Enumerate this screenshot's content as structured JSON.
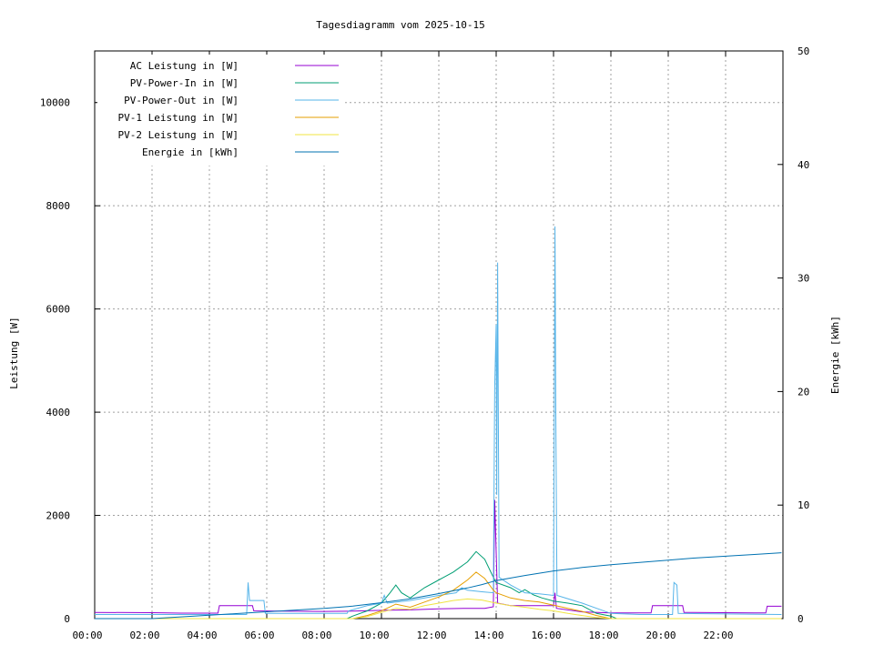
{
  "chart_data": {
    "type": "line",
    "title": "Tagesdiagramm vom 2025-10-15",
    "xlabel": "",
    "ylabel": "Leistung [W]",
    "y2label": "Energie [kWh]",
    "x_ticks": [
      "00:00",
      "02:00",
      "04:00",
      "06:00",
      "08:00",
      "10:00",
      "12:00",
      "14:00",
      "16:00",
      "18:00",
      "20:00",
      "22:00"
    ],
    "x_range_hours": [
      0,
      24
    ],
    "y_ticks": [
      "0",
      "2000",
      "4000",
      "6000",
      "8000",
      "10000"
    ],
    "ylim": [
      0,
      11000
    ],
    "y2_ticks": [
      "0",
      "10",
      "20",
      "30",
      "40",
      "50"
    ],
    "y2lim": [
      0,
      50
    ],
    "grid": true,
    "legend_position": "top-left",
    "series": [
      {
        "name": "AC Leistung in [W]",
        "color": "#9400d3",
        "axis": "left",
        "points": [
          [
            0,
            120
          ],
          [
            2,
            115
          ],
          [
            3,
            105
          ],
          [
            4.3,
            105
          ],
          [
            4.35,
            250
          ],
          [
            5.5,
            250
          ],
          [
            5.55,
            150
          ],
          [
            8,
            140
          ],
          [
            9,
            145
          ],
          [
            10,
            160
          ],
          [
            11,
            170
          ],
          [
            12,
            190
          ],
          [
            13,
            200
          ],
          [
            13.6,
            200
          ],
          [
            13.9,
            230
          ],
          [
            13.95,
            2300
          ],
          [
            14.05,
            300
          ],
          [
            14.5,
            250
          ],
          [
            15,
            250
          ],
          [
            16,
            250
          ],
          [
            16.05,
            500
          ],
          [
            16.1,
            200
          ],
          [
            17,
            130
          ],
          [
            18,
            110
          ],
          [
            19,
            110
          ],
          [
            19.4,
            110
          ],
          [
            19.45,
            250
          ],
          [
            20.5,
            250
          ],
          [
            20.55,
            120
          ],
          [
            23,
            110
          ],
          [
            23.4,
            110
          ],
          [
            23.45,
            240
          ],
          [
            23.95,
            240
          ]
        ]
      },
      {
        "name": "PV-Power-In in [W]",
        "color": "#009e73",
        "axis": "left",
        "points": [
          [
            0,
            0
          ],
          [
            8.8,
            0
          ],
          [
            9,
            50
          ],
          [
            9.5,
            150
          ],
          [
            10,
            300
          ],
          [
            10.3,
            500
          ],
          [
            10.5,
            650
          ],
          [
            10.7,
            500
          ],
          [
            11,
            400
          ],
          [
            11.5,
            600
          ],
          [
            12,
            750
          ],
          [
            12.5,
            900
          ],
          [
            13,
            1100
          ],
          [
            13.3,
            1300
          ],
          [
            13.6,
            1150
          ],
          [
            13.9,
            800
          ],
          [
            14,
            700
          ],
          [
            14.5,
            600
          ],
          [
            14.8,
            500
          ],
          [
            15,
            560
          ],
          [
            15.3,
            460
          ],
          [
            15.6,
            400
          ],
          [
            16,
            340
          ],
          [
            16.5,
            300
          ],
          [
            17,
            250
          ],
          [
            17.5,
            100
          ],
          [
            18,
            50
          ],
          [
            18.2,
            0
          ],
          [
            23.95,
            0
          ]
        ]
      },
      {
        "name": "PV-Power-Out in [W]",
        "color": "#56b4e9",
        "axis": "left",
        "points": [
          [
            0,
            80
          ],
          [
            4,
            80
          ],
          [
            5.3,
            80
          ],
          [
            5.35,
            700
          ],
          [
            5.4,
            350
          ],
          [
            5.9,
            350
          ],
          [
            5.95,
            100
          ],
          [
            8.8,
            100
          ],
          [
            8.85,
            150
          ],
          [
            9.5,
            250
          ],
          [
            10,
            300
          ],
          [
            10.1,
            450
          ],
          [
            10.2,
            300
          ],
          [
            11,
            350
          ],
          [
            12,
            450
          ],
          [
            12.6,
            500
          ],
          [
            12.8,
            600
          ],
          [
            13,
            550
          ],
          [
            13.5,
            520
          ],
          [
            13.9,
            500
          ],
          [
            13.95,
            4500
          ],
          [
            14.0,
            5700
          ],
          [
            14.02,
            2400
          ],
          [
            14.05,
            6900
          ],
          [
            14.1,
            800
          ],
          [
            14.5,
            650
          ],
          [
            15,
            500
          ],
          [
            15.5,
            480
          ],
          [
            16,
            450
          ],
          [
            16.05,
            7600
          ],
          [
            16.08,
            4000
          ],
          [
            16.12,
            450
          ],
          [
            17,
            300
          ],
          [
            17.5,
            200
          ],
          [
            18,
            100
          ],
          [
            19,
            80
          ],
          [
            20.15,
            80
          ],
          [
            20.2,
            700
          ],
          [
            20.3,
            650
          ],
          [
            20.35,
            100
          ],
          [
            23.95,
            80
          ]
        ]
      },
      {
        "name": "PV-1 Leistung in [W]",
        "color": "#e69f00",
        "axis": "left",
        "points": [
          [
            0,
            0
          ],
          [
            9,
            0
          ],
          [
            9.5,
            60
          ],
          [
            10,
            150
          ],
          [
            10.5,
            280
          ],
          [
            11,
            220
          ],
          [
            11.5,
            320
          ],
          [
            12,
            420
          ],
          [
            12.5,
            550
          ],
          [
            13,
            750
          ],
          [
            13.3,
            900
          ],
          [
            13.6,
            780
          ],
          [
            13.9,
            550
          ],
          [
            14,
            500
          ],
          [
            14.5,
            400
          ],
          [
            15,
            350
          ],
          [
            15.5,
            320
          ],
          [
            16,
            260
          ],
          [
            16.5,
            200
          ],
          [
            17,
            140
          ],
          [
            17.5,
            60
          ],
          [
            18,
            0
          ],
          [
            23.95,
            0
          ]
        ]
      },
      {
        "name": "PV-2 Leistung in [W]",
        "color": "#f0e442",
        "axis": "left",
        "points": [
          [
            0,
            0
          ],
          [
            9,
            0
          ],
          [
            9.5,
            40
          ],
          [
            10,
            120
          ],
          [
            10.5,
            200
          ],
          [
            11,
            180
          ],
          [
            11.5,
            250
          ],
          [
            12,
            300
          ],
          [
            12.5,
            350
          ],
          [
            13,
            380
          ],
          [
            13.5,
            360
          ],
          [
            14,
            300
          ],
          [
            14.5,
            250
          ],
          [
            15,
            220
          ],
          [
            15.5,
            180
          ],
          [
            16,
            150
          ],
          [
            16.5,
            100
          ],
          [
            17,
            60
          ],
          [
            17.5,
            20
          ],
          [
            18,
            0
          ],
          [
            23.95,
            0
          ]
        ]
      },
      {
        "name": "Energie in [kWh]",
        "color": "#0072b2",
        "axis": "right",
        "points": [
          [
            0,
            0
          ],
          [
            0.5,
            0
          ],
          [
            2,
            0
          ],
          [
            3,
            0.15
          ],
          [
            4,
            0.3
          ],
          [
            5,
            0.45
          ],
          [
            6,
            0.6
          ],
          [
            7,
            0.75
          ],
          [
            8,
            0.9
          ],
          [
            9,
            1.1
          ],
          [
            10,
            1.4
          ],
          [
            11,
            1.75
          ],
          [
            12,
            2.2
          ],
          [
            13,
            2.7
          ],
          [
            13.5,
            3.0
          ],
          [
            14,
            3.35
          ],
          [
            15,
            3.8
          ],
          [
            16,
            4.2
          ],
          [
            17,
            4.5
          ],
          [
            18,
            4.75
          ],
          [
            19,
            4.95
          ],
          [
            20,
            5.15
          ],
          [
            21,
            5.35
          ],
          [
            22,
            5.5
          ],
          [
            23,
            5.65
          ],
          [
            23.95,
            5.8
          ]
        ]
      }
    ]
  }
}
